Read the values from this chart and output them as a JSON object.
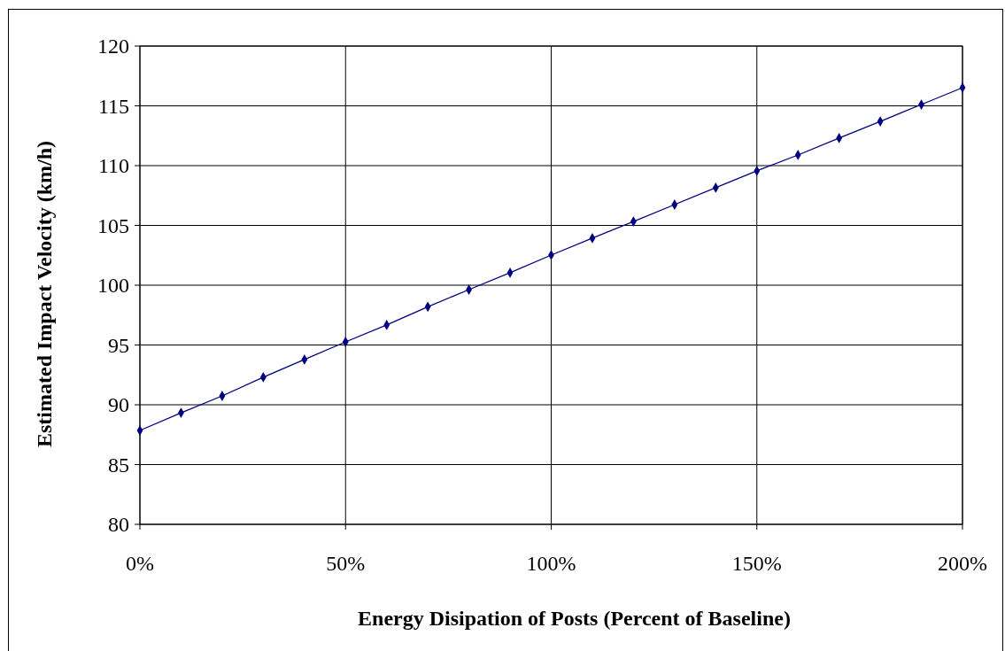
{
  "chart_data": {
    "type": "line",
    "xlabel": "Energy Disipation of Posts (Percent of Baseline)",
    "ylabel": "Estimated Impact Velocity (km/h)",
    "x": [
      0,
      10,
      20,
      30,
      40,
      50,
      60,
      70,
      80,
      90,
      100,
      110,
      120,
      130,
      140,
      150,
      160,
      170,
      180,
      190,
      200
    ],
    "series": [
      {
        "color": "#000080",
        "values": [
          87.85,
          89.33,
          90.74,
          92.3,
          93.78,
          95.26,
          96.67,
          98.2,
          99.63,
          101.04,
          102.52,
          103.93,
          105.33,
          106.74,
          108.15,
          109.56,
          110.89,
          112.3,
          113.7,
          115.11,
          116.52
        ]
      }
    ],
    "xlim": [
      0,
      200
    ],
    "xticks": [
      {
        "value": 0,
        "label": "0%"
      },
      {
        "value": 50,
        "label": "50%"
      },
      {
        "value": 100,
        "label": "100%"
      },
      {
        "value": 150,
        "label": "150%"
      },
      {
        "value": 200,
        "label": "200%"
      }
    ],
    "ylim": [
      80,
      120
    ],
    "yticks": [
      80,
      85,
      90,
      95,
      100,
      105,
      110,
      115,
      120
    ],
    "grid": true,
    "marker": "diamond",
    "line_style": "solid"
  }
}
